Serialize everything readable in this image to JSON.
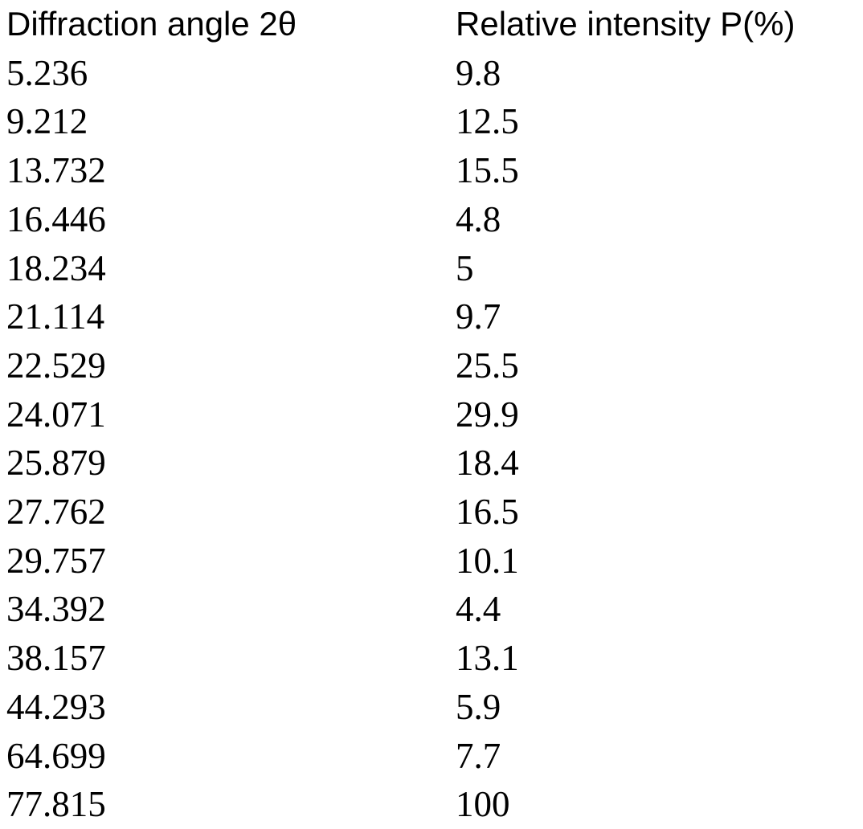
{
  "colors": {
    "background": "#ffffff",
    "text": "#000000"
  },
  "chart_data": {
    "type": "table",
    "title": "",
    "columns": [
      "Diffraction angle 2θ",
      "Relative intensity P(%)"
    ],
    "rows": [
      [
        "5.236",
        "9.8"
      ],
      [
        "9.212",
        "12.5"
      ],
      [
        "13.732",
        "15.5"
      ],
      [
        "16.446",
        "4.8"
      ],
      [
        "18.234",
        "5"
      ],
      [
        "21.114",
        "9.7"
      ],
      [
        "22.529",
        "25.5"
      ],
      [
        "24.071",
        "29.9"
      ],
      [
        "25.879",
        "18.4"
      ],
      [
        "27.762",
        "16.5"
      ],
      [
        "29.757",
        "10.1"
      ],
      [
        "34.392",
        "4.4"
      ],
      [
        "38.157",
        "13.1"
      ],
      [
        "44.293",
        "5.9"
      ],
      [
        "64.699",
        "7.7"
      ],
      [
        "77.815",
        "100"
      ]
    ]
  }
}
